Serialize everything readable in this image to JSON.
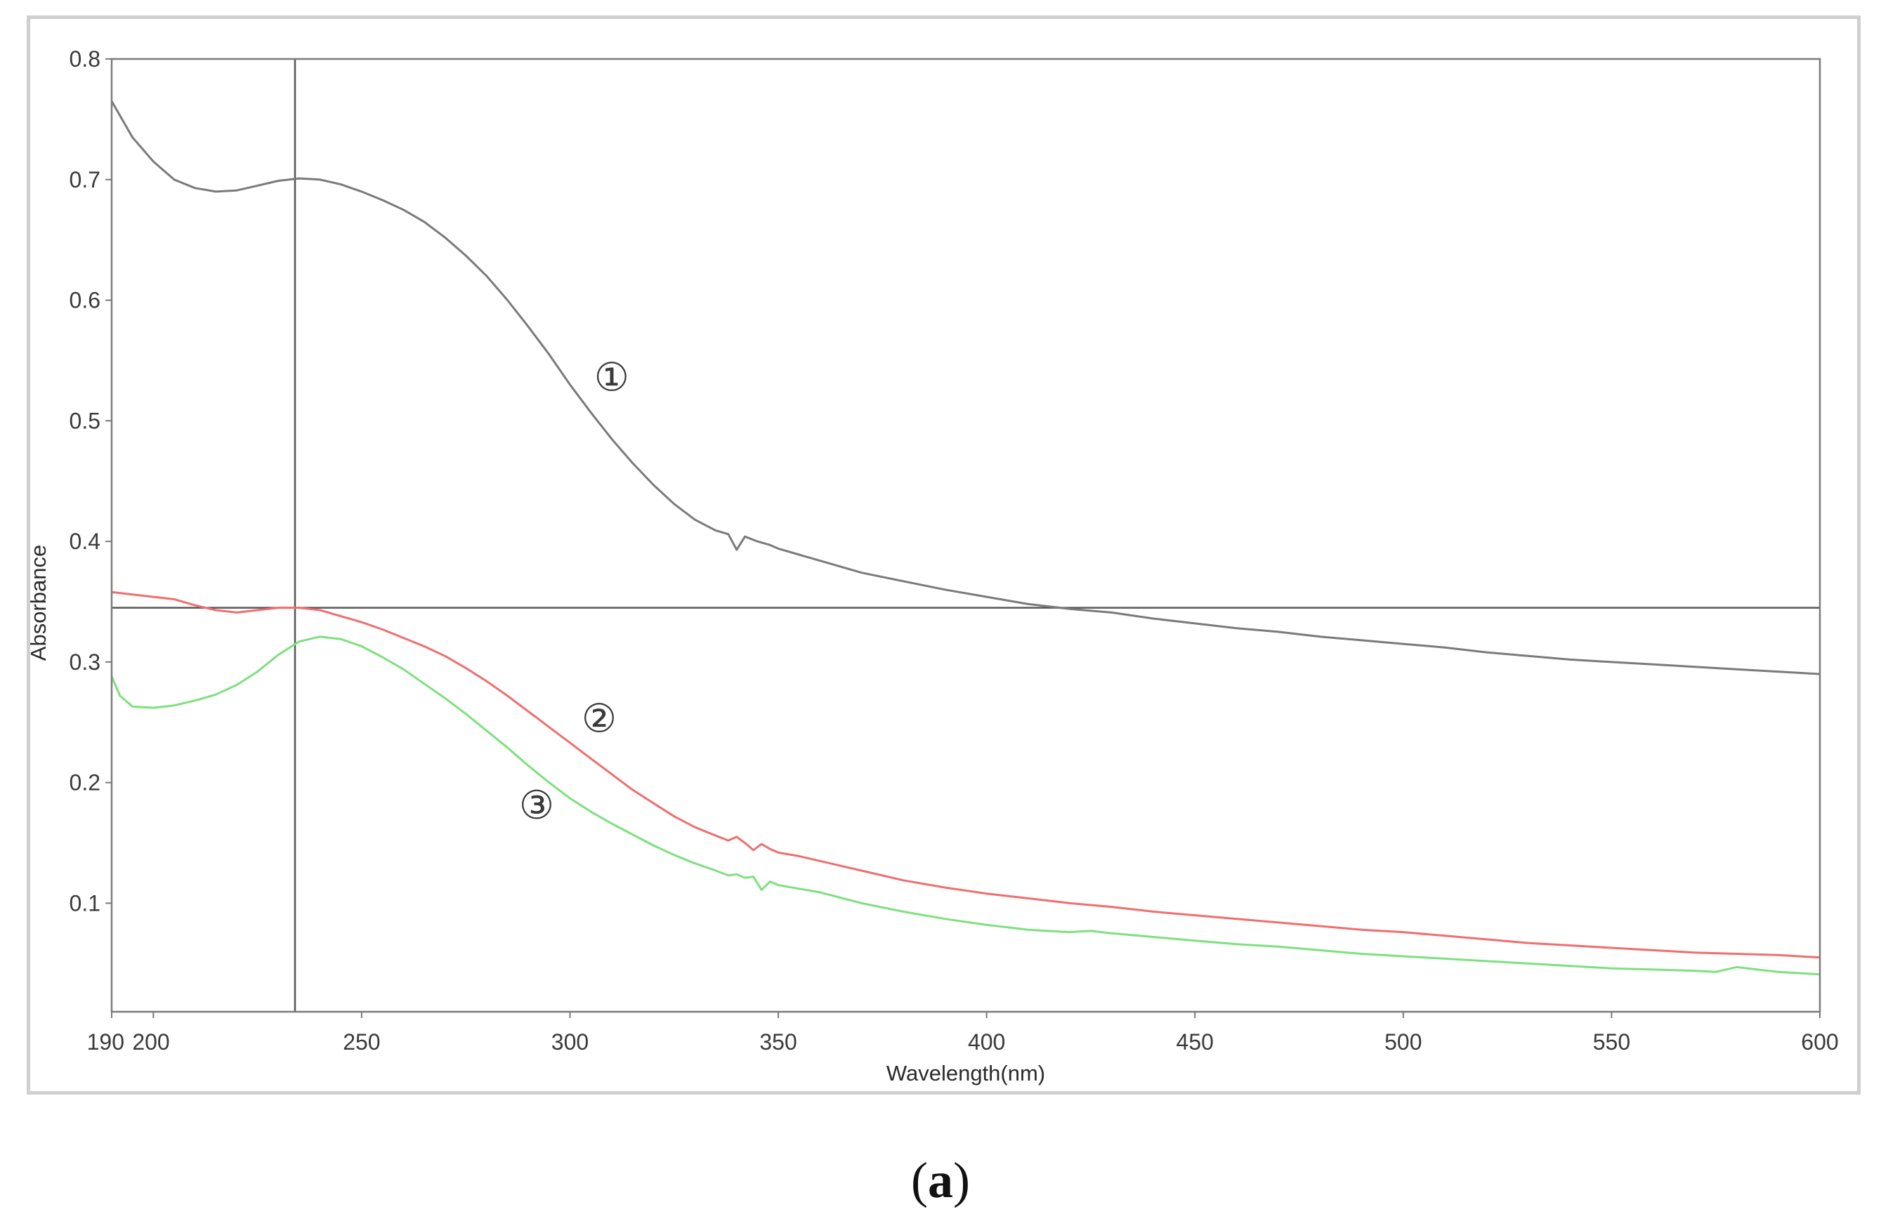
{
  "chart_data": {
    "type": "line",
    "title": "",
    "xlabel": "Wavelength(nm)",
    "ylabel": "Absorbance",
    "xlim": [
      190,
      600
    ],
    "ylim": [
      0.01,
      0.8
    ],
    "x_ticks": [
      190,
      200,
      250,
      300,
      350,
      400,
      450,
      500,
      550,
      600
    ],
    "x_tick_labels": [
      "190",
      "200",
      "250",
      "300",
      "350",
      "400",
      "450",
      "500",
      "550",
      "600"
    ],
    "y_ticks": [
      0.1,
      0.2,
      0.3,
      0.4,
      0.5,
      0.6,
      0.7,
      0.8
    ],
    "y_tick_labels": [
      "0.1",
      "0.2",
      "0.3",
      "0.4",
      "0.5",
      "0.6",
      "0.7",
      "0.8"
    ],
    "grid": false,
    "legend": "none",
    "cursor": {
      "x": 234,
      "y": 0.345
    },
    "series": [
      {
        "label": "①",
        "color": "#7a7a7a",
        "label_at": [
          310,
          0.525
        ],
        "points": [
          [
            190,
            0.765
          ],
          [
            195,
            0.735
          ],
          [
            200,
            0.715
          ],
          [
            205,
            0.7
          ],
          [
            210,
            0.693
          ],
          [
            215,
            0.69
          ],
          [
            220,
            0.691
          ],
          [
            225,
            0.695
          ],
          [
            230,
            0.699
          ],
          [
            235,
            0.701
          ],
          [
            240,
            0.7
          ],
          [
            245,
            0.696
          ],
          [
            250,
            0.69
          ],
          [
            255,
            0.683
          ],
          [
            260,
            0.675
          ],
          [
            265,
            0.665
          ],
          [
            270,
            0.652
          ],
          [
            275,
            0.637
          ],
          [
            280,
            0.62
          ],
          [
            285,
            0.6
          ],
          [
            290,
            0.578
          ],
          [
            295,
            0.555
          ],
          [
            300,
            0.53
          ],
          [
            305,
            0.507
          ],
          [
            310,
            0.485
          ],
          [
            315,
            0.465
          ],
          [
            320,
            0.447
          ],
          [
            325,
            0.431
          ],
          [
            330,
            0.418
          ],
          [
            335,
            0.409
          ],
          [
            338,
            0.406
          ],
          [
            340,
            0.393
          ],
          [
            342,
            0.404
          ],
          [
            345,
            0.4
          ],
          [
            348,
            0.397
          ],
          [
            350,
            0.394
          ],
          [
            352,
            0.392
          ],
          [
            355,
            0.389
          ],
          [
            360,
            0.384
          ],
          [
            370,
            0.374
          ],
          [
            380,
            0.367
          ],
          [
            390,
            0.36
          ],
          [
            400,
            0.354
          ],
          [
            410,
            0.348
          ],
          [
            420,
            0.344
          ],
          [
            430,
            0.341
          ],
          [
            440,
            0.336
          ],
          [
            450,
            0.332
          ],
          [
            460,
            0.328
          ],
          [
            470,
            0.325
          ],
          [
            480,
            0.321
          ],
          [
            490,
            0.318
          ],
          [
            500,
            0.315
          ],
          [
            510,
            0.312
          ],
          [
            520,
            0.308
          ],
          [
            530,
            0.305
          ],
          [
            540,
            0.302
          ],
          [
            550,
            0.3
          ],
          [
            560,
            0.298
          ],
          [
            570,
            0.296
          ],
          [
            580,
            0.294
          ],
          [
            590,
            0.292
          ],
          [
            600,
            0.29
          ]
        ]
      },
      {
        "label": "②",
        "color": "#f06e6e",
        "label_at": [
          307,
          0.242
        ],
        "points": [
          [
            190,
            0.358
          ],
          [
            195,
            0.356
          ],
          [
            200,
            0.354
          ],
          [
            205,
            0.352
          ],
          [
            210,
            0.347
          ],
          [
            215,
            0.343
          ],
          [
            220,
            0.341
          ],
          [
            225,
            0.343
          ],
          [
            230,
            0.345
          ],
          [
            235,
            0.345
          ],
          [
            240,
            0.343
          ],
          [
            245,
            0.338
          ],
          [
            250,
            0.333
          ],
          [
            255,
            0.327
          ],
          [
            260,
            0.32
          ],
          [
            265,
            0.313
          ],
          [
            270,
            0.305
          ],
          [
            275,
            0.295
          ],
          [
            280,
            0.284
          ],
          [
            285,
            0.272
          ],
          [
            290,
            0.259
          ],
          [
            295,
            0.246
          ],
          [
            300,
            0.233
          ],
          [
            305,
            0.22
          ],
          [
            310,
            0.207
          ],
          [
            315,
            0.194
          ],
          [
            320,
            0.183
          ],
          [
            325,
            0.172
          ],
          [
            330,
            0.163
          ],
          [
            335,
            0.156
          ],
          [
            338,
            0.152
          ],
          [
            340,
            0.155
          ],
          [
            342,
            0.15
          ],
          [
            344,
            0.144
          ],
          [
            346,
            0.149
          ],
          [
            348,
            0.145
          ],
          [
            350,
            0.142
          ],
          [
            355,
            0.139
          ],
          [
            360,
            0.135
          ],
          [
            370,
            0.127
          ],
          [
            380,
            0.119
          ],
          [
            390,
            0.113
          ],
          [
            400,
            0.108
          ],
          [
            410,
            0.104
          ],
          [
            420,
            0.1
          ],
          [
            430,
            0.097
          ],
          [
            440,
            0.093
          ],
          [
            450,
            0.09
          ],
          [
            460,
            0.087
          ],
          [
            470,
            0.084
          ],
          [
            480,
            0.081
          ],
          [
            490,
            0.078
          ],
          [
            500,
            0.076
          ],
          [
            510,
            0.073
          ],
          [
            520,
            0.07
          ],
          [
            530,
            0.067
          ],
          [
            540,
            0.065
          ],
          [
            550,
            0.063
          ],
          [
            560,
            0.061
          ],
          [
            570,
            0.059
          ],
          [
            580,
            0.058
          ],
          [
            590,
            0.057
          ],
          [
            600,
            0.055
          ]
        ]
      },
      {
        "label": "③",
        "color": "#7ee07e",
        "label_at": [
          292,
          0.17
        ],
        "points": [
          [
            190,
            0.288
          ],
          [
            192,
            0.272
          ],
          [
            195,
            0.263
          ],
          [
            200,
            0.262
          ],
          [
            205,
            0.264
          ],
          [
            210,
            0.268
          ],
          [
            215,
            0.273
          ],
          [
            220,
            0.281
          ],
          [
            225,
            0.292
          ],
          [
            230,
            0.306
          ],
          [
            235,
            0.317
          ],
          [
            240,
            0.321
          ],
          [
            245,
            0.319
          ],
          [
            250,
            0.313
          ],
          [
            255,
            0.304
          ],
          [
            260,
            0.294
          ],
          [
            265,
            0.282
          ],
          [
            270,
            0.27
          ],
          [
            275,
            0.257
          ],
          [
            280,
            0.243
          ],
          [
            285,
            0.229
          ],
          [
            290,
            0.214
          ],
          [
            295,
            0.2
          ],
          [
            300,
            0.187
          ],
          [
            305,
            0.176
          ],
          [
            310,
            0.166
          ],
          [
            315,
            0.157
          ],
          [
            320,
            0.148
          ],
          [
            325,
            0.14
          ],
          [
            330,
            0.133
          ],
          [
            335,
            0.127
          ],
          [
            338,
            0.123
          ],
          [
            340,
            0.124
          ],
          [
            342,
            0.121
          ],
          [
            344,
            0.122
          ],
          [
            346,
            0.111
          ],
          [
            348,
            0.118
          ],
          [
            350,
            0.115
          ],
          [
            360,
            0.109
          ],
          [
            370,
            0.1
          ],
          [
            380,
            0.093
          ],
          [
            390,
            0.087
          ],
          [
            400,
            0.082
          ],
          [
            410,
            0.078
          ],
          [
            420,
            0.076
          ],
          [
            425,
            0.077
          ],
          [
            430,
            0.075
          ],
          [
            440,
            0.072
          ],
          [
            450,
            0.069
          ],
          [
            460,
            0.066
          ],
          [
            470,
            0.064
          ],
          [
            480,
            0.061
          ],
          [
            490,
            0.058
          ],
          [
            500,
            0.056
          ],
          [
            510,
            0.054
          ],
          [
            520,
            0.052
          ],
          [
            530,
            0.05
          ],
          [
            540,
            0.048
          ],
          [
            550,
            0.046
          ],
          [
            560,
            0.045
          ],
          [
            570,
            0.044
          ],
          [
            575,
            0.043
          ],
          [
            580,
            0.047
          ],
          [
            585,
            0.045
          ],
          [
            590,
            0.043
          ],
          [
            600,
            0.041
          ]
        ]
      }
    ]
  },
  "panel_label": {
    "open": "(",
    "letter": "a",
    "close": ")"
  }
}
